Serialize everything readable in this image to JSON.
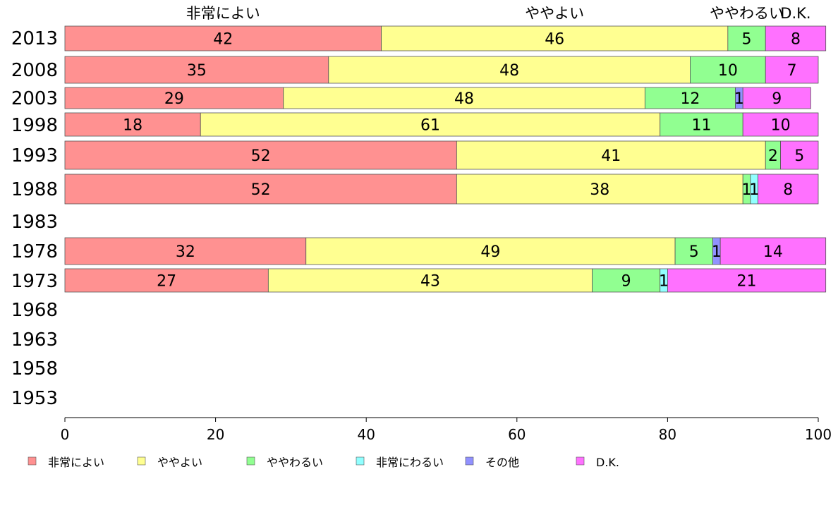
{
  "chart_data": {
    "type": "bar",
    "orientation": "horizontal",
    "stacked": true,
    "title": "",
    "xlabel": "",
    "ylabel": "",
    "xlim": [
      0,
      100
    ],
    "x_ticks": [
      "0",
      "20",
      "40",
      "60",
      "80",
      "100"
    ],
    "categories": [
      "2013",
      "2008",
      "2003",
      "1998",
      "1993",
      "1988",
      "1983",
      "1978",
      "1973",
      "1968",
      "1963",
      "1958",
      "1953"
    ],
    "series": [
      {
        "name": "非常によい",
        "color": "#ff9191",
        "values": [
          42,
          35,
          29,
          18,
          52,
          52,
          null,
          32,
          27,
          null,
          null,
          null,
          null
        ]
      },
      {
        "name": "ややよい",
        "color": "#ffff91",
        "values": [
          46,
          48,
          48,
          61,
          41,
          38,
          null,
          49,
          43,
          null,
          null,
          null,
          null
        ]
      },
      {
        "name": "ややわるい",
        "color": "#91ff91",
        "values": [
          5,
          10,
          12,
          11,
          2,
          1,
          null,
          5,
          9,
          null,
          null,
          null,
          null
        ]
      },
      {
        "name": "非常にわるい",
        "color": "#91ffff",
        "values": [
          0,
          0,
          0,
          0,
          0,
          1,
          null,
          0,
          1,
          null,
          null,
          null,
          null
        ]
      },
      {
        "name": "その他",
        "color": "#9191ff",
        "values": [
          0,
          0,
          1,
          0,
          0,
          0,
          null,
          1,
          0,
          null,
          null,
          null,
          null
        ]
      },
      {
        "name": "D.K.",
        "color": "#ff71ff",
        "values": [
          8,
          7,
          9,
          10,
          5,
          8,
          null,
          14,
          21,
          null,
          null,
          null,
          null
        ]
      }
    ],
    "top_labels": [
      "非常によい",
      "ややよい",
      "ややわるい",
      "非常にわるい",
      "その他",
      "D.K."
    ],
    "legend": [
      "非常によい",
      "ややよい",
      "ややわるい",
      "非常にわるい",
      "その他",
      "D.K."
    ],
    "legend_position": "bottom",
    "grid": false
  }
}
